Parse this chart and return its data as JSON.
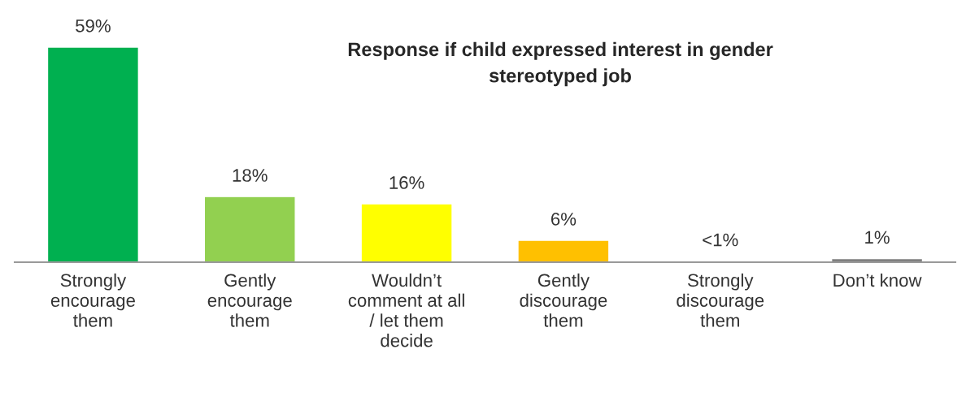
{
  "chart_data": {
    "type": "bar",
    "title": "Response if child expressed interest in gender\nstereotyped job",
    "categories": [
      "Strongly\nencourage\nthem",
      "Gently\nencourage\nthem",
      "Wouldn’t\ncomment at all\n/ let them\ndecide",
      "Gently\ndiscourage\nthem",
      "Strongly\ndiscourage\nthem",
      "Don’t know"
    ],
    "values": [
      59,
      18,
      16,
      6,
      0.3,
      1
    ],
    "colors": [
      "#00b050",
      "#92d050",
      "#ffff00",
      "#ffc000",
      "#c00000",
      "#808080"
    ],
    "value_labels": [
      "59%",
      "18%",
      "16%",
      "6%",
      "<1%",
      "1%"
    ],
    "grid": false,
    "legend": false
  }
}
